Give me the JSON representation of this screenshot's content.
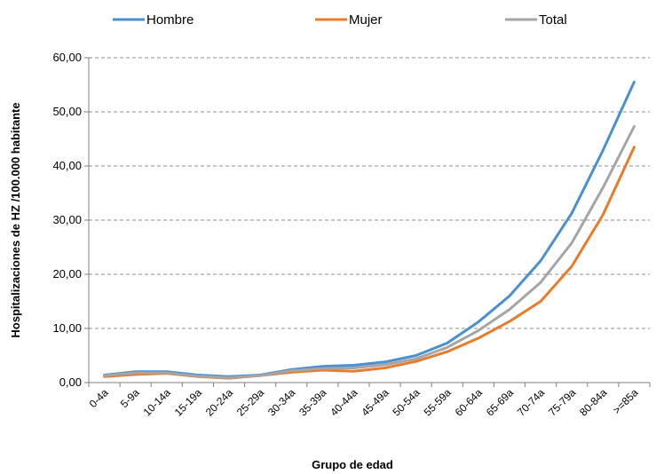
{
  "chart_data": {
    "type": "line",
    "title": "",
    "xlabel": "Grupo de edad",
    "ylabel": "Hospitalizaciones de HZ /100.000  habitante",
    "ylim": [
      0,
      60
    ],
    "yticks": [
      "0,00",
      "10,00",
      "20,00",
      "30,00",
      "40,00",
      "50,00",
      "60,00"
    ],
    "grid": "horizontal-dashed",
    "legend_position": "top",
    "categories": [
      "0-4a",
      "5-9a",
      "10-14a",
      "15-19a",
      "20-24a",
      "25-29a",
      "30-34a",
      "35-39a",
      "40-44a",
      "45-49a",
      "50-54a",
      "55-59a",
      "60-64a",
      "65-69a",
      "70-74a",
      "75-79a",
      "80-84a",
      ">=85a"
    ],
    "series": [
      {
        "name": "Hombre",
        "color": "#4A8FD0",
        "values": [
          1.4,
          2.0,
          2.0,
          1.4,
          1.1,
          1.4,
          2.4,
          3.0,
          3.2,
          3.8,
          5.0,
          7.3,
          11.2,
          16.0,
          22.5,
          31.3,
          42.9,
          55.5
        ]
      },
      {
        "name": "Mujer",
        "color": "#E87C2C",
        "values": [
          1.1,
          1.5,
          1.7,
          1.1,
          0.8,
          1.3,
          1.9,
          2.3,
          2.1,
          2.7,
          3.9,
          5.7,
          8.2,
          11.3,
          15.0,
          21.5,
          31.0,
          43.5
        ]
      },
      {
        "name": "Total",
        "color": "#A5A5A5",
        "values": [
          1.3,
          1.8,
          1.8,
          1.2,
          0.9,
          1.3,
          2.2,
          2.6,
          2.7,
          3.3,
          4.4,
          6.5,
          9.6,
          13.5,
          18.5,
          25.8,
          36.0,
          47.3
        ]
      }
    ]
  }
}
